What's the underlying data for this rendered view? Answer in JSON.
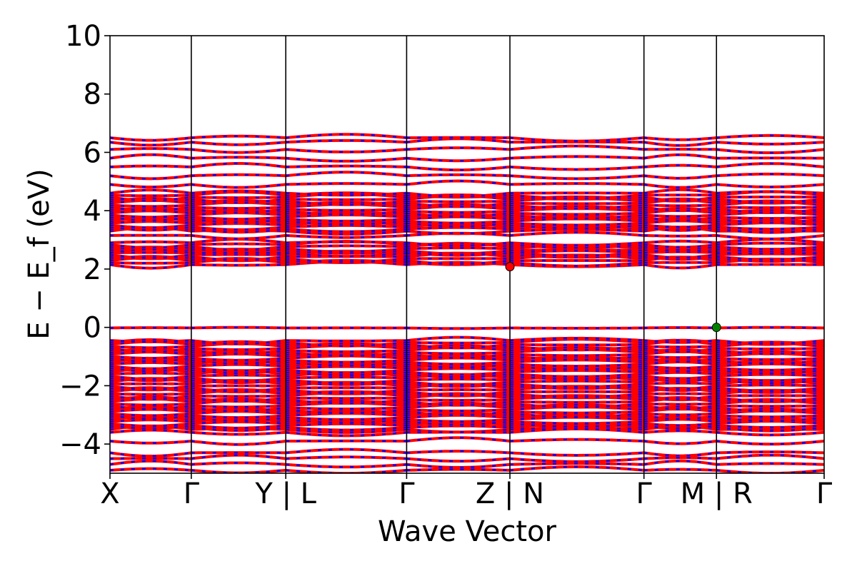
{
  "chart_data": {
    "type": "line",
    "xlabel": "Wave Vector",
    "ylabel": "E − E_f (eV)",
    "ylim": [
      -5,
      10
    ],
    "yticks": [
      -4,
      -2,
      0,
      2,
      4,
      6,
      8,
      10
    ],
    "ytick_labels": [
      "−4",
      "−2",
      "0",
      "2",
      "4",
      "6",
      "8",
      "10"
    ],
    "kpath_positions": [
      0,
      0.74,
      1.6,
      2.7,
      3.64,
      4.86,
      5.52,
      6.5
    ],
    "kpath_labels": [
      "X",
      "Γ",
      "Y | L",
      "Γ",
      "Z | N",
      "Γ",
      "M | R",
      "Γ"
    ],
    "segments": [
      [
        0,
        0.74
      ],
      [
        0.74,
        1.6
      ],
      [
        1.6,
        2.7
      ],
      [
        2.7,
        3.64
      ],
      [
        3.64,
        4.86
      ],
      [
        4.86,
        5.52
      ],
      [
        5.52,
        6.5
      ]
    ],
    "series": [
      {
        "name": "",
        "color": "#ff0000",
        "style": "solid"
      },
      {
        "name": "",
        "color": "#0000ff",
        "style": "dashed"
      }
    ],
    "bands": {
      "valence_dense_range": [
        -3.5,
        -0.45
      ],
      "conduction_dense_low_range": [
        2.15,
        2.9
      ],
      "conduction_dense_high_range": [
        3.3,
        4.6
      ],
      "flat_valence_band": -0.02,
      "lower_valence": [
        -3.6,
        -3.9,
        -4.3,
        -4.5,
        -4.7,
        -4.9
      ],
      "upper_conduction": [
        4.9,
        5.2,
        5.5,
        5.8,
        6.1,
        6.35,
        6.5
      ]
    },
    "markers": [
      {
        "name": "cbm",
        "x": 3.64,
        "y": 2.08,
        "color": "#ff0000"
      },
      {
        "name": "vbm",
        "x": 5.52,
        "y": 0.0,
        "color": "#008000"
      }
    ],
    "grid": false
  }
}
